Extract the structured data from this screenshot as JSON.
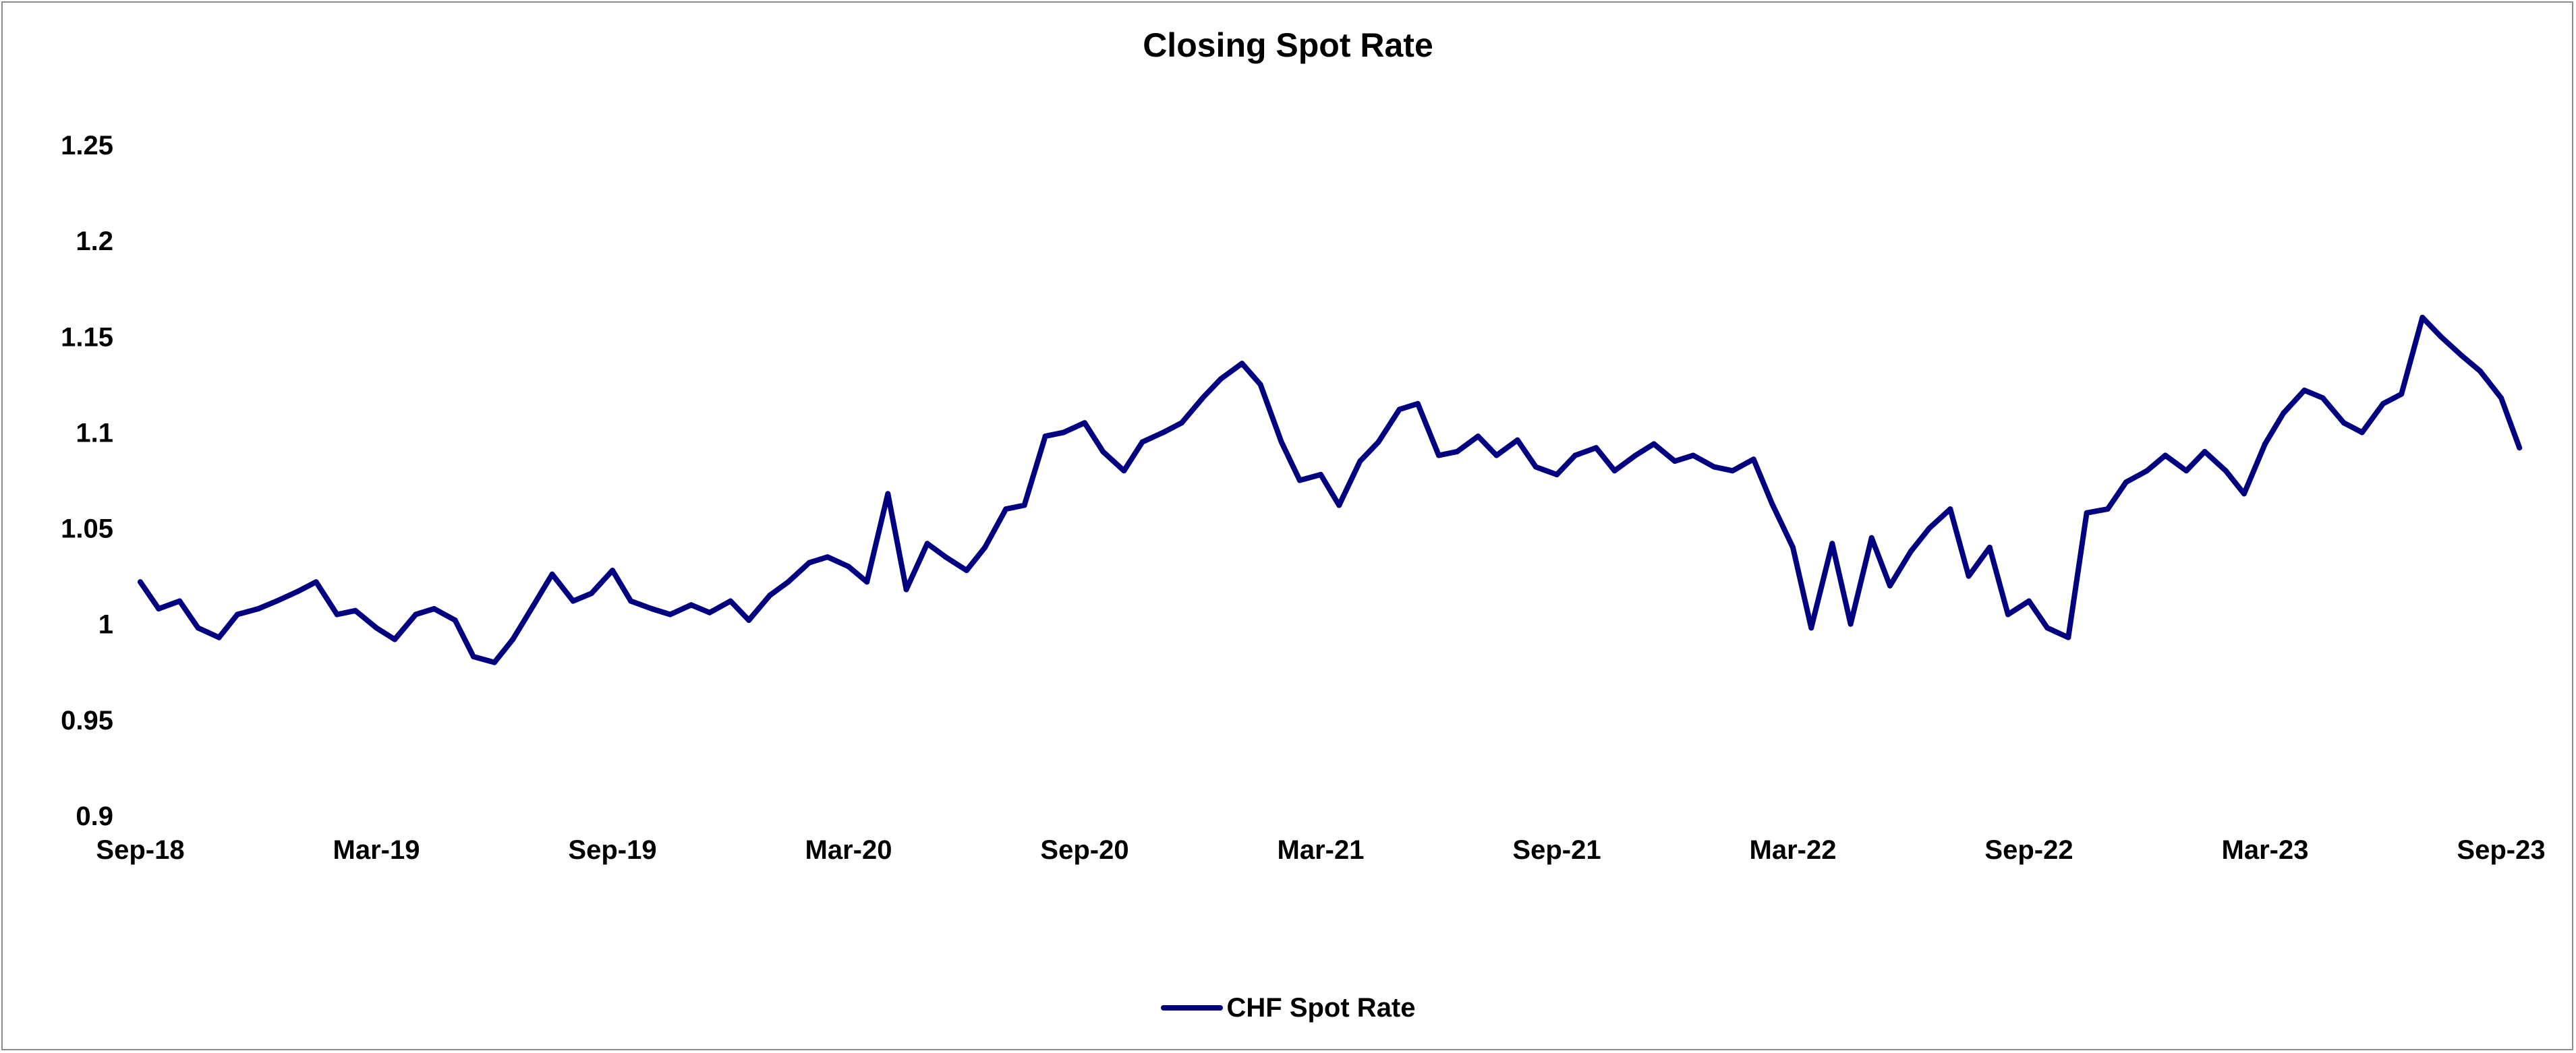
{
  "chart_data": {
    "type": "line",
    "title": "Closing Spot Rate",
    "xlabel": "",
    "ylabel": "",
    "ylim": [
      0.9,
      1.25
    ],
    "y_ticks": [
      "1.25",
      "1.2",
      "1.15",
      "1.1",
      "1.05",
      "1",
      "0.95",
      "0.9"
    ],
    "x_ticks": [
      "Sep-18",
      "Mar-19",
      "Sep-19",
      "Mar-20",
      "Sep-20",
      "Mar-21",
      "Sep-21",
      "Mar-22",
      "Sep-22",
      "Mar-23",
      "Sep-23"
    ],
    "x_range": [
      "2018-09",
      "2023-09"
    ],
    "grid": false,
    "legend_position": "bottom",
    "series": [
      {
        "name": "CHF Spot Rate",
        "color": "#000080",
        "x": [
          "2018-09-01",
          "2018-09-15",
          "2018-10-01",
          "2018-10-15",
          "2018-11-01",
          "2018-11-15",
          "2018-12-01",
          "2018-12-15",
          "2019-01-01",
          "2019-01-15",
          "2019-02-01",
          "2019-02-15",
          "2019-03-01",
          "2019-03-15",
          "2019-04-01",
          "2019-04-15",
          "2019-05-01",
          "2019-05-15",
          "2019-06-01",
          "2019-06-15",
          "2019-07-01",
          "2019-07-15",
          "2019-08-01",
          "2019-08-15",
          "2019-09-01",
          "2019-09-15",
          "2019-10-01",
          "2019-10-15",
          "2019-11-01",
          "2019-11-15",
          "2019-12-01",
          "2019-12-15",
          "2020-01-01",
          "2020-01-15",
          "2020-02-01",
          "2020-02-15",
          "2020-03-01",
          "2020-03-15",
          "2020-04-01",
          "2020-04-15",
          "2020-05-01",
          "2020-05-15",
          "2020-06-01",
          "2020-06-15",
          "2020-07-01",
          "2020-07-15",
          "2020-08-01",
          "2020-08-15",
          "2020-09-01",
          "2020-09-15",
          "2020-10-01",
          "2020-10-15",
          "2020-11-01",
          "2020-11-15",
          "2020-12-01",
          "2020-12-15",
          "2021-01-01",
          "2021-01-15",
          "2021-02-01",
          "2021-02-15",
          "2021-03-01",
          "2021-03-15",
          "2021-04-01",
          "2021-04-15",
          "2021-05-01",
          "2021-05-15",
          "2021-06-01",
          "2021-06-15",
          "2021-07-01",
          "2021-07-15",
          "2021-08-01",
          "2021-08-15",
          "2021-09-01",
          "2021-09-15",
          "2021-10-01",
          "2021-10-15",
          "2021-11-01",
          "2021-11-15",
          "2021-12-01",
          "2021-12-15",
          "2022-01-01",
          "2022-01-15",
          "2022-02-01",
          "2022-02-15",
          "2022-03-01",
          "2022-03-15",
          "2022-04-01",
          "2022-04-15",
          "2022-05-01",
          "2022-05-15",
          "2022-06-01",
          "2022-06-15",
          "2022-07-01",
          "2022-07-15",
          "2022-08-01",
          "2022-08-15",
          "2022-09-01",
          "2022-09-15",
          "2022-10-01",
          "2022-10-15",
          "2022-11-01",
          "2022-11-15",
          "2022-12-01",
          "2022-12-15",
          "2023-01-01",
          "2023-01-15",
          "2023-02-01",
          "2023-02-15",
          "2023-03-01",
          "2023-03-15",
          "2023-04-01",
          "2023-04-15",
          "2023-05-01",
          "2023-05-15",
          "2023-06-01",
          "2023-06-15",
          "2023-07-01",
          "2023-07-15",
          "2023-08-01",
          "2023-08-15",
          "2023-09-01",
          "2023-09-15"
        ],
        "values": [
          1.022,
          1.008,
          1.012,
          0.998,
          0.993,
          1.005,
          1.008,
          1.012,
          1.017,
          1.022,
          1.005,
          1.007,
          0.998,
          0.992,
          1.005,
          1.008,
          1.002,
          0.983,
          0.98,
          0.992,
          1.01,
          1.026,
          1.012,
          1.016,
          1.028,
          1.012,
          1.008,
          1.005,
          1.01,
          1.006,
          1.012,
          1.002,
          1.015,
          1.022,
          1.032,
          1.035,
          1.03,
          1.022,
          1.068,
          1.018,
          1.042,
          1.035,
          1.028,
          1.04,
          1.06,
          1.062,
          1.098,
          1.1,
          1.105,
          1.09,
          1.08,
          1.095,
          1.1,
          1.105,
          1.118,
          1.128,
          1.136,
          1.125,
          1.095,
          1.075,
          1.078,
          1.062,
          1.085,
          1.095,
          1.112,
          1.115,
          1.088,
          1.09,
          1.098,
          1.088,
          1.096,
          1.082,
          1.078,
          1.088,
          1.092,
          1.08,
          1.088,
          1.094,
          1.085,
          1.088,
          1.082,
          1.08,
          1.086,
          1.063,
          1.04,
          0.998,
          1.042,
          1.0,
          1.045,
          1.02,
          1.038,
          1.05,
          1.06,
          1.025,
          1.04,
          1.005,
          1.012,
          0.998,
          0.993,
          1.058,
          1.06,
          1.074,
          1.08,
          1.088,
          1.08,
          1.09,
          1.08,
          1.068,
          1.094,
          1.11,
          1.122,
          1.118,
          1.105,
          1.1,
          1.115,
          1.12,
          1.16,
          1.15,
          1.14,
          1.132,
          1.118,
          1.092
        ]
      }
    ]
  }
}
